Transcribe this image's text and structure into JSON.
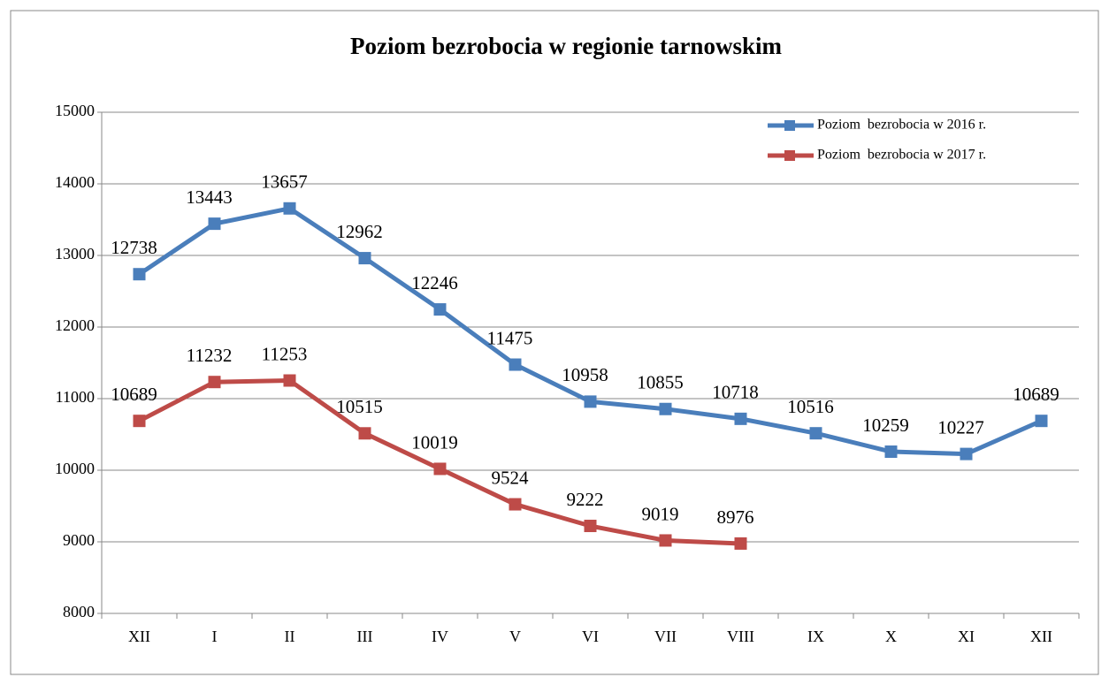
{
  "chart_data": {
    "type": "line",
    "title": "Poziom bezrobocia w regionie tarnowskim",
    "categories": [
      "XII",
      "I",
      "II",
      "III",
      "IV",
      "V",
      "VI",
      "VII",
      "VIII",
      "IX",
      "X",
      "XI",
      "XII"
    ],
    "series": [
      {
        "name": "Poziom  bezrobocia w 2016 r.",
        "color": "#4a7ebb",
        "values": [
          12738,
          13443,
          13657,
          12962,
          12246,
          11475,
          10958,
          10855,
          10718,
          10516,
          10259,
          10227,
          10689
        ]
      },
      {
        "name": "Poziom  bezrobocia w 2017 r.",
        "color": "#be4b48",
        "values": [
          10689,
          11232,
          11253,
          10515,
          10019,
          9524,
          9222,
          9019,
          8976,
          null,
          null,
          null,
          null
        ]
      }
    ],
    "ylim": [
      8000,
      15000
    ],
    "yticks": [
      8000,
      9000,
      10000,
      11000,
      12000,
      13000,
      14000,
      15000
    ],
    "grid": true,
    "legend": "top-right"
  }
}
